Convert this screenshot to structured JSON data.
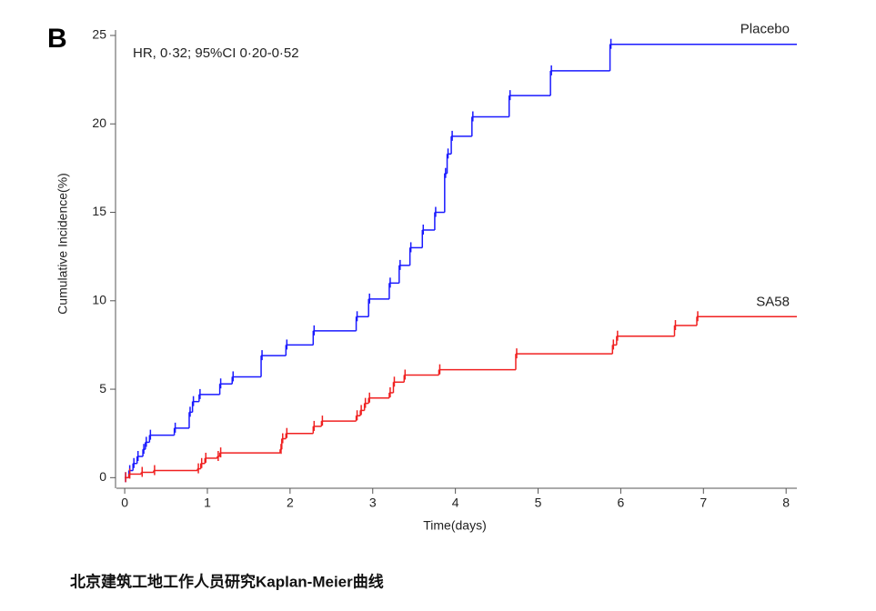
{
  "chart_data": {
    "type": "km",
    "panel_label": "B",
    "annotation": "HR, 0·32; 95%CI 0·20-0·52",
    "x_label": "Time(days)",
    "y_label": "Cumulative Incidence(%)",
    "caption": "北京建筑工地工作人员研究Kaplan-Meier曲线",
    "xlim": [
      -0.1,
      8.13
    ],
    "ylim": [
      -0.6,
      25
    ],
    "xticks": [
      0,
      1,
      2,
      3,
      4,
      5,
      6,
      7,
      8
    ],
    "yticks": [
      0,
      5,
      10,
      15,
      20,
      25
    ],
    "series": [
      {
        "name": "Placebo",
        "color": "#1a1aff",
        "x": [
          0,
          0.05,
          0.1,
          0.15,
          0.22,
          0.25,
          0.3,
          0.6,
          0.78,
          0.82,
          0.9,
          1.15,
          1.3,
          1.65,
          1.95,
          2.28,
          2.8,
          2.95,
          3.2,
          3.32,
          3.45,
          3.6,
          3.75,
          3.87,
          3.9,
          3.95,
          4.2,
          4.65,
          5.15,
          5.87
        ],
        "values": [
          0,
          0.4,
          0.8,
          1.2,
          1.6,
          2.0,
          2.4,
          2.8,
          3.7,
          4.3,
          4.7,
          5.3,
          5.7,
          6.9,
          7.5,
          8.3,
          9.1,
          10.1,
          11.0,
          12.0,
          13.0,
          14.0,
          15.0,
          17.2,
          18.3,
          19.3,
          20.4,
          21.6,
          23.0,
          24.5
        ]
      },
      {
        "name": "SA58",
        "color": "#f02020",
        "x": [
          0,
          0.05,
          0.2,
          0.35,
          0.88,
          0.92,
          0.97,
          1.12,
          1.15,
          1.88,
          1.9,
          1.95,
          2.28,
          2.38,
          2.8,
          2.85,
          2.9,
          2.95,
          3.2,
          3.25,
          3.38,
          3.8,
          4.73,
          5.9,
          5.95,
          6.65,
          6.92
        ],
        "values": [
          0,
          0.2,
          0.3,
          0.4,
          0.5,
          0.8,
          1.1,
          1.2,
          1.4,
          1.6,
          2.2,
          2.5,
          2.9,
          3.2,
          3.5,
          3.8,
          4.2,
          4.5,
          4.8,
          5.4,
          5.8,
          6.1,
          7.0,
          7.5,
          8.0,
          8.6,
          9.1
        ]
      }
    ]
  }
}
